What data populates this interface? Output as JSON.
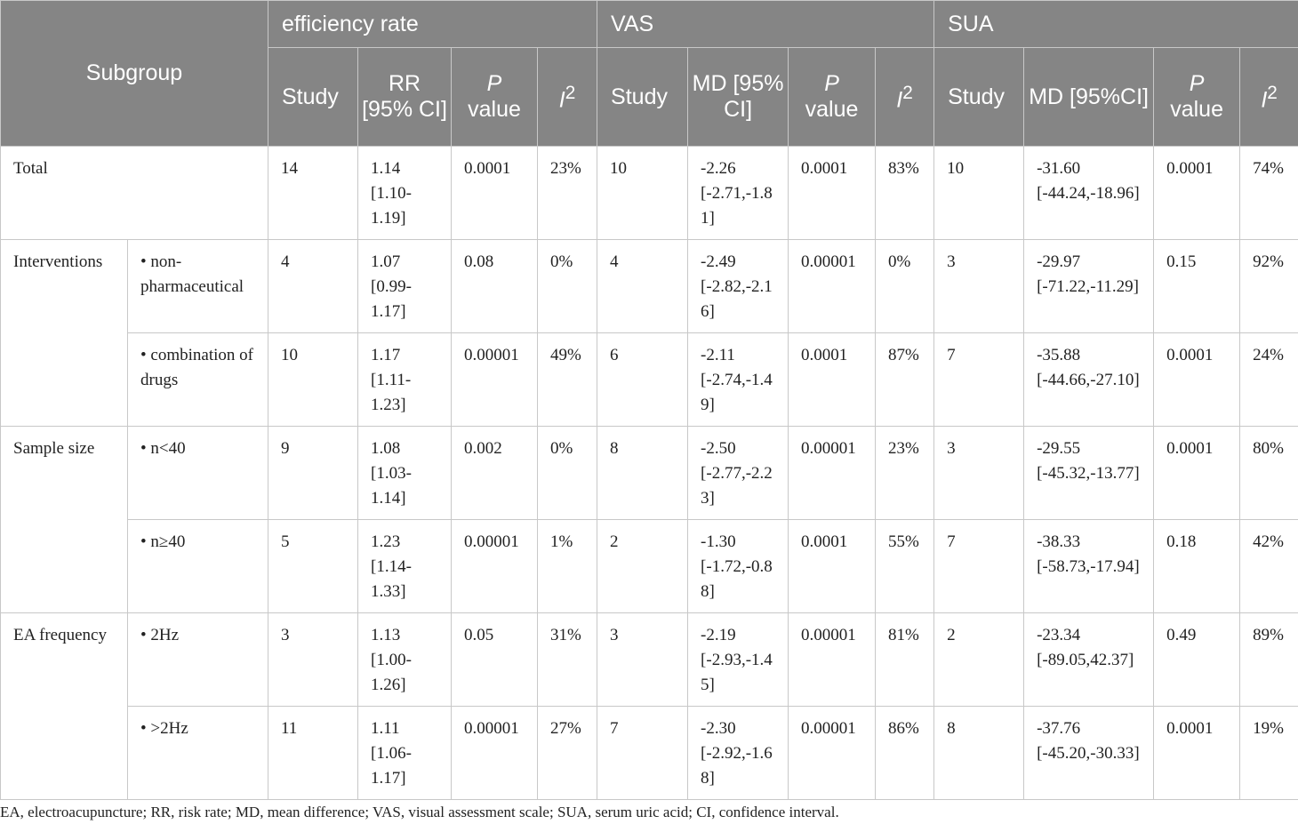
{
  "header": {
    "subgroup": "Subgroup",
    "groups": [
      "efficiency rate",
      "VAS",
      "SUA"
    ],
    "efficiency": {
      "study": "Study",
      "effect": "RR [95% CI]",
      "p_italic": "P",
      "p_rest": "value",
      "i_italic": "I",
      "i_sup": "2"
    },
    "vas": {
      "study": "Study",
      "effect": "MD [95% CI]",
      "p_italic": "P",
      "p_rest": "value",
      "i_italic": "I",
      "i_sup": "2"
    },
    "sua": {
      "study": "Study",
      "effect": "MD [95%CI]",
      "p_italic": "P",
      "p_rest": "value",
      "i_italic": "I",
      "i_sup": "2"
    }
  },
  "rows": [
    {
      "group": "Total",
      "sub": "",
      "cells": [
        "14",
        "1.14 [1.10-1.19]",
        "0.0001",
        "23%",
        "10",
        "-2.26 [-2.71,-1.81]",
        "0.0001",
        "83%",
        "10",
        "-31.60 [-44.24,-18.96]",
        "0.0001",
        "74%"
      ]
    },
    {
      "group": "Interventions",
      "sub": "• non-pharmaceutical",
      "cells": [
        "4",
        "1.07 [0.99-1.17]",
        "0.08",
        "0%",
        "4",
        "-2.49 [-2.82,-2.16]",
        "0.00001",
        "0%",
        "3",
        "-29.97 [-71.22,-11.29]",
        "0.15",
        "92%"
      ]
    },
    {
      "group": "",
      "sub": "• combination of drugs",
      "cells": [
        "10",
        "1.17 [1.11-1.23]",
        "0.00001",
        "49%",
        "6",
        "-2.11 [-2.74,-1.49]",
        "0.0001",
        "87%",
        "7",
        "-35.88 [-44.66,-27.10]",
        "0.0001",
        "24%"
      ]
    },
    {
      "group": "Sample size",
      "sub": "• n<40",
      "cells": [
        "9",
        "1.08 [1.03-1.14]",
        "0.002",
        "0%",
        "8",
        "-2.50 [-2.77,-2.23]",
        "0.00001",
        "23%",
        "3",
        "-29.55 [-45.32,-13.77]",
        "0.0001",
        "80%"
      ]
    },
    {
      "group": "",
      "sub": "• n≥40",
      "cells": [
        "5",
        "1.23 [1.14-1.33]",
        "0.00001",
        "1%",
        "2",
        "-1.30 [-1.72,-0.88]",
        "0.0001",
        "55%",
        "7",
        "-38.33 [-58.73,-17.94]",
        "0.18",
        "42%"
      ]
    },
    {
      "group": "EA frequency",
      "sub": "• 2Hz",
      "cells": [
        "3",
        "1.13 [1.00-1.26]",
        "0.05",
        "31%",
        "3",
        "-2.19 [-2.93,-1.45]",
        "0.00001",
        "81%",
        "2",
        "-23.34 [-89.05,42.37]",
        "0.49",
        "89%"
      ]
    },
    {
      "group": "",
      "sub": "• >2Hz",
      "cells": [
        "11",
        "1.11 [1.06-1.17]",
        "0.00001",
        "27%",
        "7",
        "-2.30 [-2.92,-1.68]",
        "0.00001",
        "86%",
        "8",
        "-37.76 [-45.20,-30.33]",
        "0.0001",
        "19%"
      ]
    }
  ],
  "footnote": "EA, electroacupuncture; RR, risk rate; MD, mean difference; VAS, visual assessment scale; SUA, serum uric acid; CI, confidence interval.",
  "colors": {
    "header_bg": "#858585",
    "header_text": "#ffffff",
    "border": "#c8c8c8"
  }
}
